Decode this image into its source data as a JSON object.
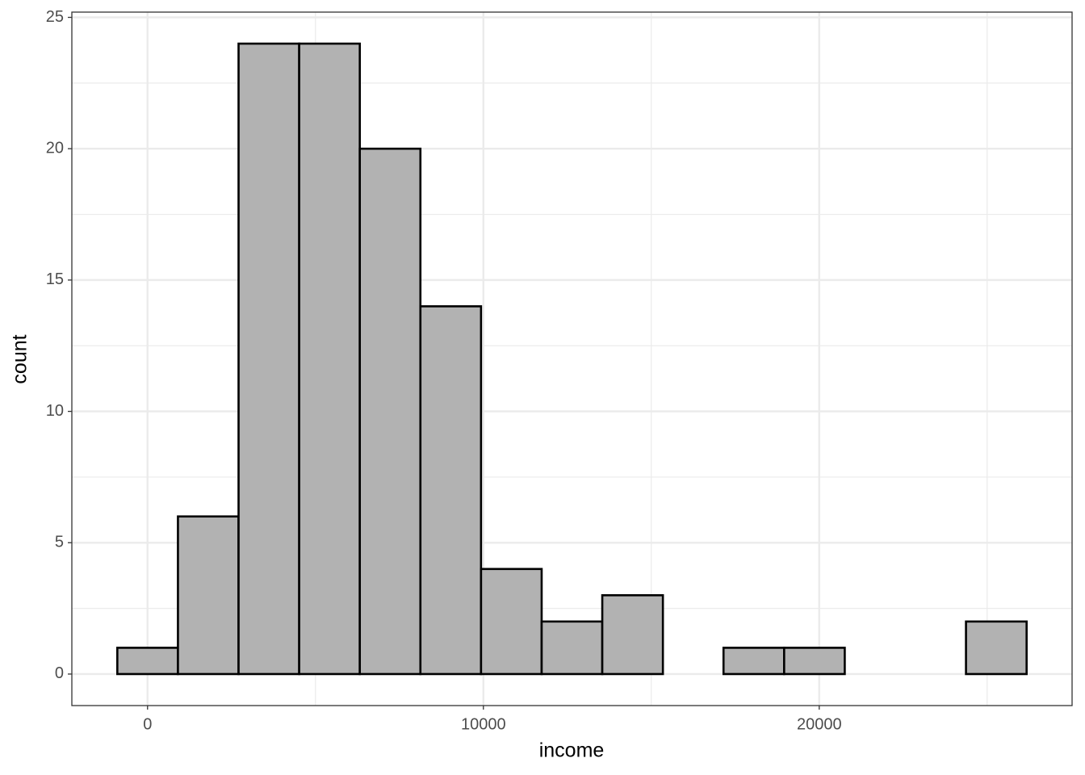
{
  "chart_data": {
    "type": "histogram",
    "x_label": "income",
    "y_label": "count",
    "bins": [
      -900,
      905,
      2710,
      4515,
      6320,
      8125,
      9930,
      11735,
      13540,
      15345,
      17150,
      18955,
      20760,
      22565,
      24370,
      26175
    ],
    "values": [
      1,
      6,
      24,
      24,
      20,
      14,
      4,
      2,
      3,
      0,
      1,
      1,
      0,
      0,
      2
    ],
    "color": "#b2b2b2",
    "edge_color": "#000000",
    "xlim": [
      -2254,
      27529
    ],
    "xticks": [
      0,
      10000,
      20000
    ],
    "ylim": [
      -1.2,
      25.2
    ],
    "yticks": [
      0,
      5,
      10,
      15,
      20,
      25
    ],
    "grid": true
  }
}
